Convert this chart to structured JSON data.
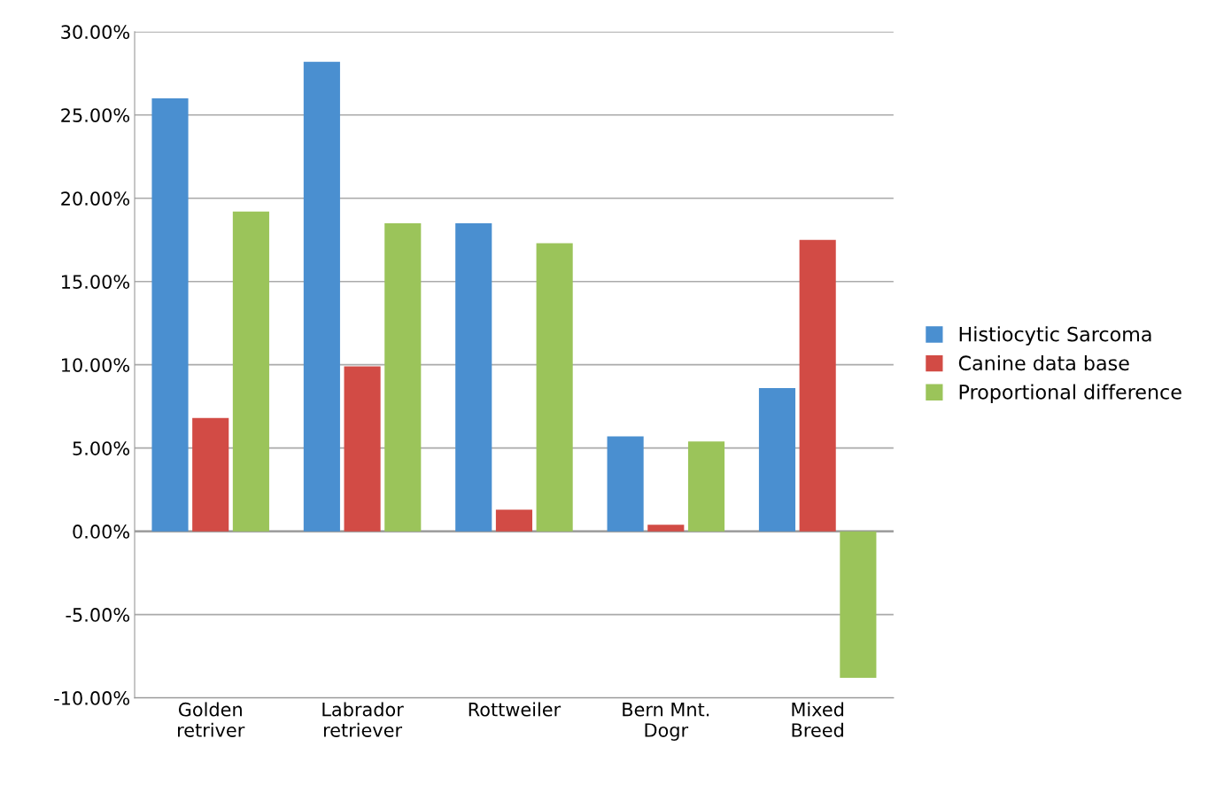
{
  "chart_data": {
    "type": "bar",
    "categories": [
      "Golden\nretriver",
      "Labrador\nretriever",
      "Rottweiler",
      "Bern Mnt.\nDogr",
      "Mixed\nBreed"
    ],
    "series": [
      {
        "name": "Histiocytic Sarcoma",
        "color": "#4a8fd0",
        "values": [
          26.0,
          28.2,
          18.5,
          5.7,
          8.6
        ]
      },
      {
        "name": "Canine data base",
        "color": "#d24b45",
        "values": [
          6.8,
          9.9,
          1.3,
          0.4,
          17.5
        ]
      },
      {
        "name": "Proportional difference",
        "color": "#9bc45a",
        "values": [
          19.2,
          18.5,
          17.3,
          5.4,
          -8.8
        ]
      }
    ],
    "ylim": [
      -10,
      30
    ],
    "yticks": [
      {
        "value": -10,
        "label": "-10.00%"
      },
      {
        "value": -5,
        "label": "-5.00%"
      },
      {
        "value": 0,
        "label": "0.00%"
      },
      {
        "value": 5,
        "label": "5.00%"
      },
      {
        "value": 10,
        "label": "10.00%"
      },
      {
        "value": 15,
        "label": "15.00%"
      },
      {
        "value": 20,
        "label": "20.00%"
      },
      {
        "value": 25,
        "label": "25.00%"
      },
      {
        "value": 30,
        "label": "30.00%"
      }
    ],
    "grid": "y",
    "legend": "right"
  }
}
